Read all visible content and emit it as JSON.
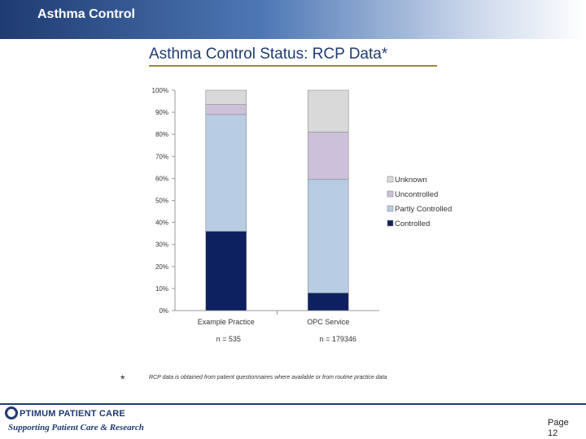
{
  "header": {
    "title": "Asthma Control"
  },
  "slide": {
    "title": "Asthma Control Status: RCP Data*"
  },
  "chart_data": {
    "type": "bar",
    "stacked": true,
    "categories": [
      "Example Practice",
      "OPC Service"
    ],
    "category_notes": [
      "n = 535",
      "n = 179346"
    ],
    "series": [
      {
        "name": "Controlled",
        "values": [
          36,
          8
        ],
        "color": "#0d2060"
      },
      {
        "name": "Partly Controlled",
        "values": [
          53,
          51.5
        ],
        "color": "#b8cce4"
      },
      {
        "name": "Uncontrolled",
        "values": [
          4.5,
          21.5
        ],
        "color": "#ccc0da"
      },
      {
        "name": "Unknown",
        "values": [
          6.5,
          19
        ],
        "color": "#d9d9d9"
      }
    ],
    "legend_order": [
      "Unknown",
      "Uncontrolled",
      "Partly Controlled",
      "Controlled"
    ],
    "legend_position": "right",
    "ylim": [
      0,
      100
    ],
    "yticks": [
      "0%",
      "10%",
      "20%",
      "30%",
      "40%",
      "50%",
      "60%",
      "70%",
      "80%",
      "90%",
      "100%"
    ],
    "grid": false
  },
  "footnote": {
    "symbol": "*",
    "text": "RCP data is obtained from patient questionnaires where available or from routine practice data"
  },
  "logo": {
    "name": "PTIMUM PATIENT CARE",
    "tagline": "Supporting Patient Care & Research"
  },
  "page": {
    "label": "Page",
    "number": "12"
  }
}
